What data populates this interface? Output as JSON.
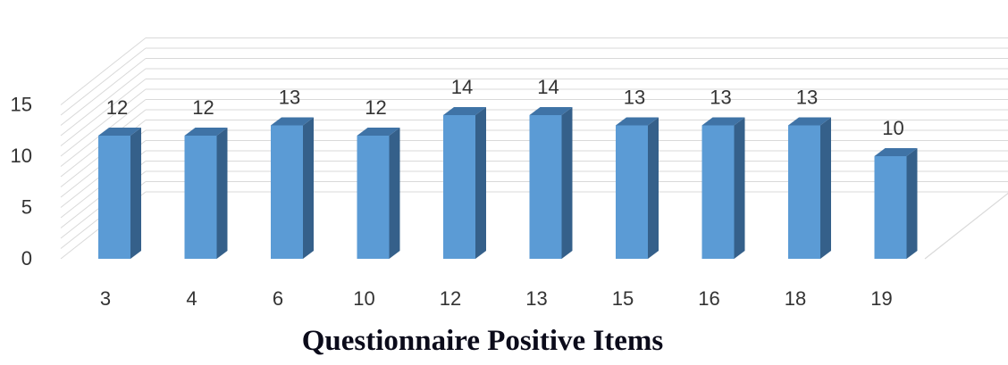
{
  "chart_data": {
    "type": "bar",
    "title": "Questionnaire Positive Items",
    "xlabel": "",
    "ylabel": "",
    "categories": [
      "3",
      "4",
      "6",
      "10",
      "12",
      "13",
      "15",
      "16",
      "18",
      "19"
    ],
    "values": [
      12,
      12,
      13,
      12,
      14,
      14,
      13,
      13,
      13,
      10
    ],
    "data_labels": [
      "12",
      "12",
      "13",
      "12",
      "14",
      "14",
      "13",
      "13",
      "13",
      "10"
    ],
    "ylim": [
      0,
      15
    ],
    "yticks": [
      "0",
      "5",
      "10",
      "15"
    ],
    "grid": true,
    "style": "3d-column",
    "legend": "none",
    "colors": {
      "bar_front": "#5b9bd5",
      "bar_side": "#35608a",
      "bar_top": "#3f73a6",
      "grid": "#d9d9d9"
    }
  }
}
